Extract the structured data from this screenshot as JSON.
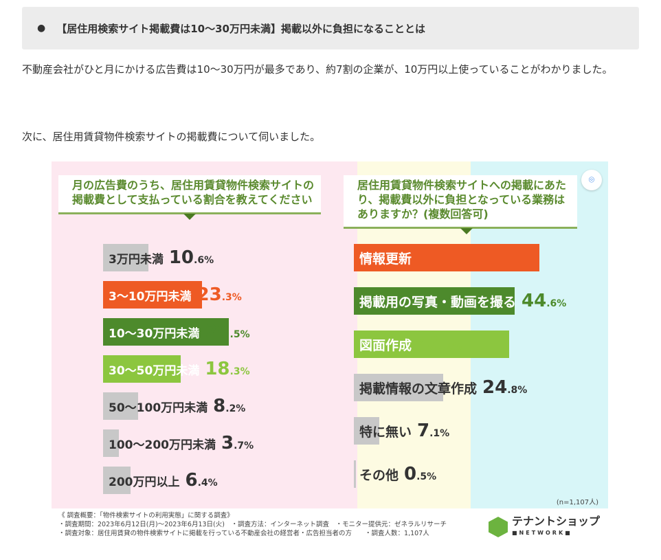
{
  "heading": "【居住用検索サイト掲載費は10～30万円未満】掲載以外に負担になることとは",
  "para1": "不動産会社がひと月にかける広告費は10～30万円が最多であり、約7割の企業が、10万円以上使っていることがわかりました。",
  "para2": "次に、居住用賃貸物件検索サイトの掲載費について伺いました。",
  "chart_data": [
    {
      "type": "bar",
      "title": "月の広告費のうち、居住用賃貸物件検索サイトの掲載費として支払っている割合を教えてください",
      "categories": [
        "3万円未満",
        "3～10万円未満",
        "10～30万円未満",
        "30～50万円未満",
        "50～100万円未満",
        "100～200万円未満",
        "200万円以上"
      ],
      "values": [
        10.6,
        23.3,
        29.5,
        18.3,
        8.2,
        3.7,
        6.4
      ],
      "colors": [
        "#c8c8c8",
        "#ee5a24",
        "#4d8a2c",
        "#8cc63f",
        "#c8c8c8",
        "#c8c8c8",
        "#c8c8c8"
      ],
      "label_colors": [
        "#333333",
        "#ffffff",
        "#ffffff",
        "#ffffff",
        "#333333",
        "#333333",
        "#333333"
      ],
      "value_colors": [
        "#333333",
        "#ee5a24",
        "#4d8a2c",
        "#8cc63f",
        "#333333",
        "#333333",
        "#333333"
      ],
      "unit": "%"
    },
    {
      "type": "bar",
      "title": "居住用賃貸物件検索サイトへの掲載にあたり、掲載費以外に負担となっている業務はありますか？(複数回答可)",
      "categories": [
        "情報更新",
        "掲載用の写真・動画を撮る",
        "図面作成",
        "掲載情報の文章作成",
        "特に無い",
        "その他"
      ],
      "values": [
        51.5,
        44.6,
        43.1,
        24.8,
        7.1,
        0.5
      ],
      "colors": [
        "#ee5a24",
        "#4d8a2c",
        "#8cc63f",
        "#c8c8c8",
        "#c8c8c8",
        "#c8c8c8"
      ],
      "label_colors": [
        "#ffffff",
        "#ffffff",
        "#ffffff",
        "#333333",
        "#333333",
        "#333333"
      ],
      "value_colors": [
        "#ee5a24",
        "#4d8a2c",
        "#8cc63f",
        "#333333",
        "#333333",
        "#333333"
      ],
      "unit": "%",
      "note": "(n=1,107人)"
    }
  ],
  "footer": [
    "《 調査概要：「物件検索サイトの利用実態」に関する調査》",
    "・調査期間：2023年6月12日(月)～2023年6月13日(火)　・調査方法：インターネット調査　・モニター提供元：ゼネラルリサーチ",
    "・調査対象：居住用賃貸の物件検索サイトに掲載を行っている不動産会社の経営者・広告担当者の方　　・調査人数：1,107人"
  ],
  "logo": {
    "name": "テナントショップ",
    "sub": "■NETWORK■"
  }
}
